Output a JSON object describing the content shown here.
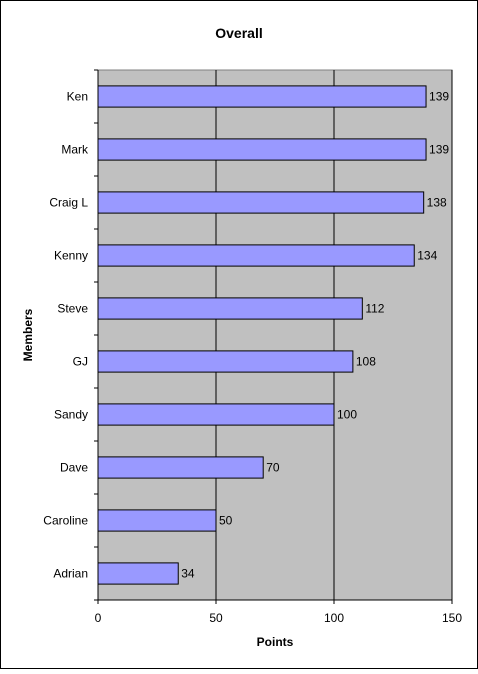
{
  "chart_data": {
    "type": "bar",
    "orientation": "horizontal",
    "title": "Overall",
    "xlabel": "Points",
    "ylabel": "Members",
    "xlim": [
      0,
      150
    ],
    "x_ticks": [
      0,
      50,
      100,
      150
    ],
    "grid": "vertical major gridlines",
    "categories": [
      "Ken",
      "Mark",
      "Craig L",
      "Kenny",
      "Steve",
      "GJ",
      "Sandy",
      "Dave",
      "Caroline",
      "Adrian"
    ],
    "values": [
      139,
      139,
      138,
      134,
      112,
      108,
      100,
      70,
      50,
      34
    ],
    "data_labels": [
      "139",
      "139",
      "138",
      "134",
      "112",
      "108",
      "100",
      "70",
      "50",
      "34"
    ],
    "colors": {
      "bar_fill": "#9999ff",
      "bar_stroke": "#000000",
      "plot_background": "#c0c0c0",
      "gridline": "#000000"
    }
  }
}
